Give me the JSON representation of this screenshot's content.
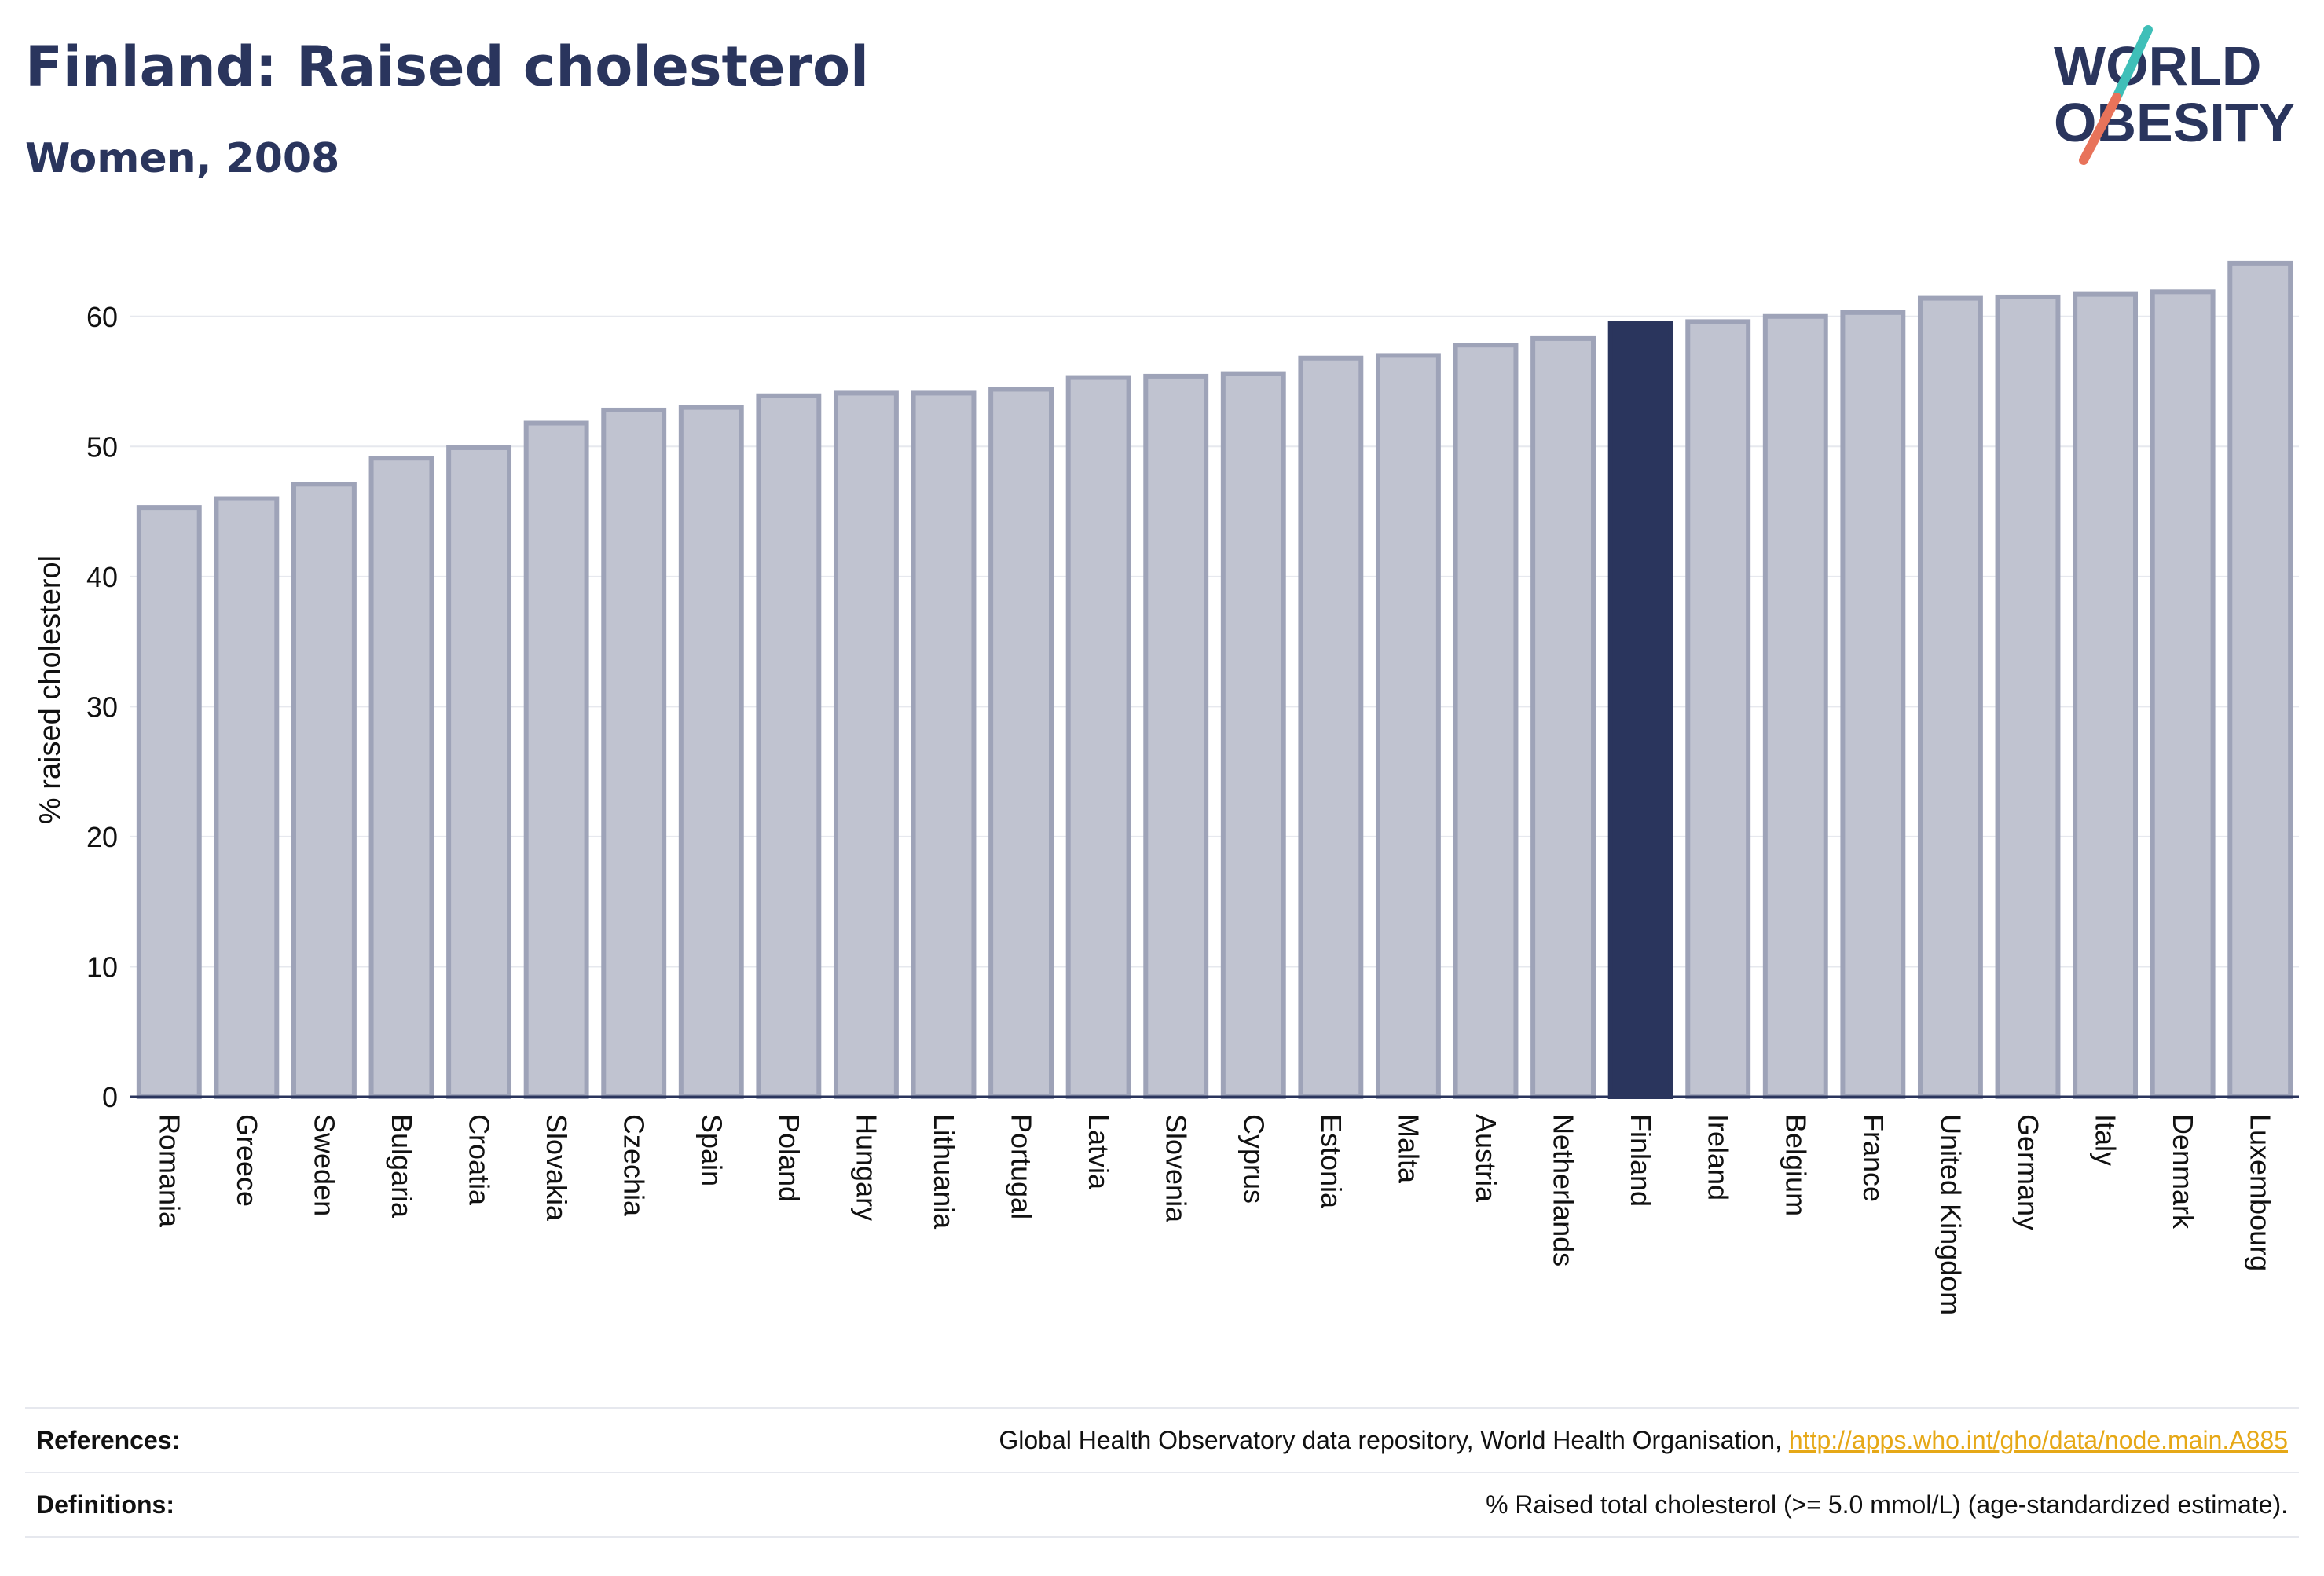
{
  "header": {
    "title": "Finland: Raised cholesterol",
    "subtitle": "Women, 2008"
  },
  "logo": {
    "line1": "WORLD",
    "line2": "OBESITY",
    "colors": {
      "text": "#2a355d",
      "slash_top": "#3fbfb8",
      "slash_bottom": "#e8735a"
    }
  },
  "footer": {
    "references_label": "References:",
    "references_text": "Global Health Observatory data repository, World Health Organisation,",
    "references_link": "http://apps.who.int/gho/data/node.main.A885",
    "definitions_label": "Definitions:",
    "definitions_text": "% Raised total cholesterol (>= 5.0 mmol/L) (age-standardized estimate)."
  },
  "chart_data": {
    "type": "bar",
    "title": "Finland: Raised cholesterol",
    "subtitle": "Women, 2008",
    "xlabel": "",
    "ylabel": "% raised cholesterol",
    "ylim": [
      0,
      65
    ],
    "yticks": [
      0,
      10,
      20,
      30,
      40,
      50,
      60
    ],
    "grid": true,
    "highlight": "Finland",
    "colors": {
      "bar": "#c0c3d0",
      "bar_edge": "#9ea3b8",
      "highlight": "#2a355d",
      "axis": "#2a355d",
      "grid": "#e6e8ee"
    },
    "categories": [
      "Romania",
      "Greece",
      "Sweden",
      "Bulgaria",
      "Croatia",
      "Slovakia",
      "Czechia",
      "Spain",
      "Poland",
      "Hungary",
      "Lithuania",
      "Portugal",
      "Latvia",
      "Slovenia",
      "Cyprus",
      "Estonia",
      "Malta",
      "Austria",
      "Netherlands",
      "Finland",
      "Ireland",
      "Belgium",
      "France",
      "United Kingdom",
      "Germany",
      "Italy",
      "Denmark",
      "Luxembourg"
    ],
    "values": [
      45.3,
      46.0,
      47.1,
      49.1,
      49.9,
      51.8,
      52.8,
      53.0,
      53.9,
      54.1,
      54.1,
      54.4,
      55.3,
      55.4,
      55.6,
      56.8,
      57.0,
      57.8,
      58.3,
      59.5,
      59.6,
      60.0,
      60.3,
      61.4,
      61.5,
      61.7,
      61.9,
      64.1
    ]
  }
}
